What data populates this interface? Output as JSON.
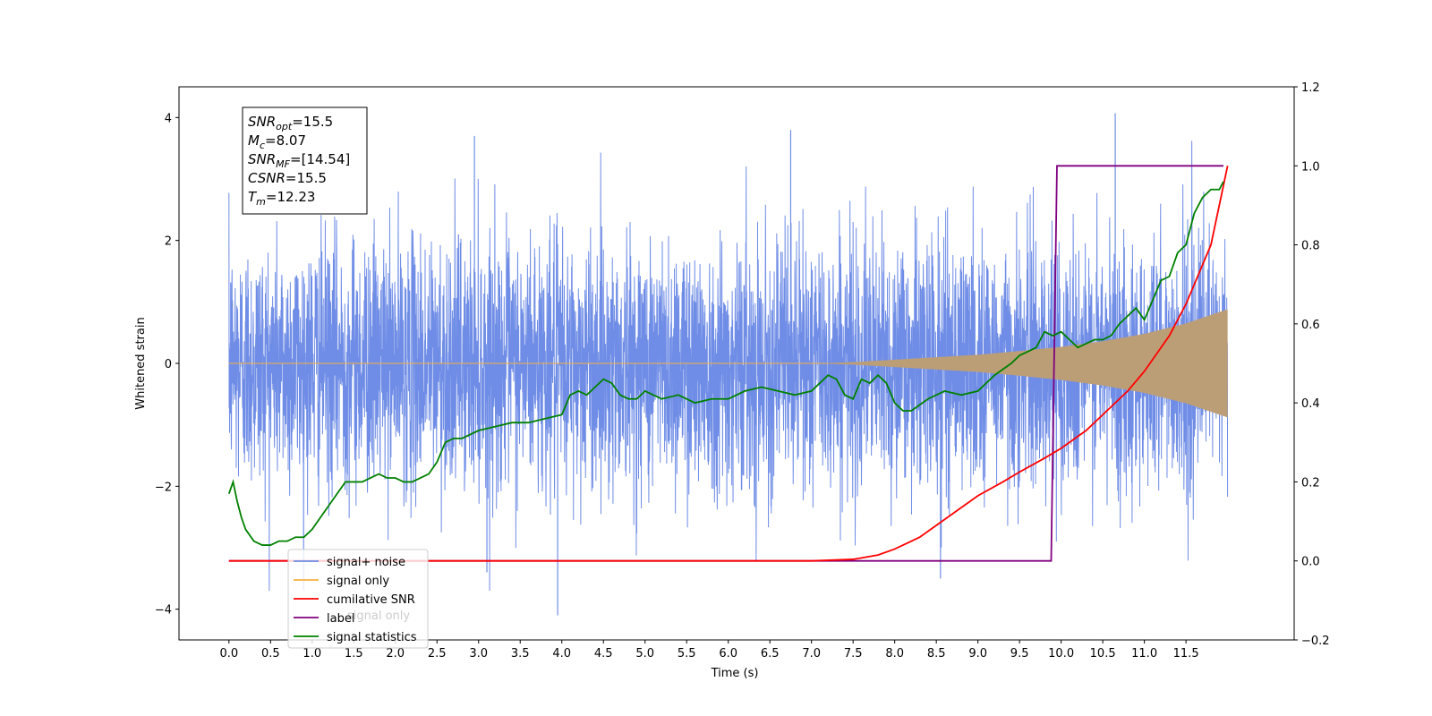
{
  "chart_data": {
    "type": "line",
    "title": "",
    "xlabel": "Time (s)",
    "ylabel": "Whitened strain",
    "y2label": "",
    "xlim": [
      -0.6,
      12.8
    ],
    "ylim": [
      -4.5,
      4.5
    ],
    "y2lim": [
      -0.2,
      1.2
    ],
    "x_ticks": [
      "0.0",
      "0.5",
      "1.0",
      "1.5",
      "2.0",
      "2.5",
      "3.0",
      "3.5",
      "4.0",
      "4.5",
      "5.0",
      "5.5",
      "6.0",
      "6.5",
      "7.0",
      "7.5",
      "8.0",
      "8.5",
      "9.0",
      "9.5",
      "10.0",
      "10.5",
      "11.0",
      "11.5"
    ],
    "y_ticks": [
      -4,
      -2,
      0,
      2,
      4
    ],
    "y2_ticks": [
      "−0.2",
      "0.0",
      "0.2",
      "0.4",
      "0.6",
      "0.8",
      "1.0",
      "1.2"
    ],
    "grid": false,
    "legend_position": "lower-left",
    "colors": {
      "signal_noise": "#6f8de6",
      "signal_only": "#f5b041",
      "cumulative_snr": "#ff0000",
      "label": "#800080",
      "signal_statistics": "#008000"
    },
    "legend": [
      {
        "key": "signal_noise",
        "label": "signal+ noise"
      },
      {
        "key": "signal_only",
        "label": "signal only"
      },
      {
        "key": "cumulative_snr",
        "label": "cumilative SNR"
      },
      {
        "key": "label",
        "label": "label"
      },
      {
        "key": "signal_statistics",
        "label": "signal statistics"
      }
    ],
    "hidden_legend_text": "signal only",
    "annotation": [
      {
        "base": "SNR",
        "sub": "opt",
        "value": "=15.5"
      },
      {
        "base": "M",
        "sub": "c",
        "value": "=8.07"
      },
      {
        "base": "SNR",
        "sub": "MF",
        "value": "=[14.54]"
      },
      {
        "base": "CSNR",
        "sub": "",
        "value": "=15.5"
      },
      {
        "base": "T",
        "sub": "m",
        "value": "=12.23"
      }
    ],
    "series": {
      "signal_noise": {
        "description_axis": "left",
        "x_range": [
          0.0,
          12.0
        ],
        "std": 1.0,
        "peak_max": 4.07,
        "peak_min": -4.1
      },
      "signal_only": {
        "axis": "left",
        "envelope_x": [
          0.0,
          7.0,
          7.5,
          8.0,
          8.5,
          9.0,
          9.5,
          10.0,
          10.5,
          11.0,
          11.5,
          12.0
        ],
        "envelope_amp": [
          0.0,
          0.0,
          0.02,
          0.06,
          0.1,
          0.14,
          0.2,
          0.27,
          0.36,
          0.48,
          0.65,
          0.88
        ]
      },
      "cumulative_snr": {
        "axis": "right",
        "x": [
          0.0,
          7.0,
          7.5,
          7.8,
          8.0,
          8.3,
          8.5,
          8.8,
          9.0,
          9.3,
          9.5,
          9.8,
          10.0,
          10.3,
          10.5,
          10.8,
          11.0,
          11.3,
          11.5,
          11.8,
          12.0
        ],
        "y": [
          0.0,
          0.0,
          0.004,
          0.015,
          0.03,
          0.06,
          0.09,
          0.135,
          0.165,
          0.2,
          0.225,
          0.26,
          0.285,
          0.33,
          0.37,
          0.43,
          0.48,
          0.57,
          0.65,
          0.8,
          1.0
        ]
      },
      "label": {
        "axis": "right",
        "x": [
          0.0,
          9.88,
          9.95,
          11.95
        ],
        "y": [
          0.0,
          0.0,
          1.0,
          1.0
        ]
      },
      "signal_statistics": {
        "axis": "right",
        "x": [
          0.0,
          0.05,
          0.1,
          0.15,
          0.2,
          0.3,
          0.4,
          0.5,
          0.6,
          0.7,
          0.8,
          0.9,
          1.0,
          1.1,
          1.2,
          1.3,
          1.4,
          1.5,
          1.6,
          1.7,
          1.8,
          1.9,
          2.0,
          2.1,
          2.2,
          2.3,
          2.4,
          2.5,
          2.6,
          2.7,
          2.8,
          2.9,
          3.0,
          3.2,
          3.4,
          3.6,
          3.8,
          4.0,
          4.1,
          4.2,
          4.3,
          4.4,
          4.5,
          4.6,
          4.7,
          4.8,
          4.9,
          5.0,
          5.1,
          5.2,
          5.4,
          5.6,
          5.8,
          6.0,
          6.2,
          6.4,
          6.6,
          6.8,
          7.0,
          7.1,
          7.2,
          7.3,
          7.4,
          7.5,
          7.6,
          7.7,
          7.8,
          7.9,
          8.0,
          8.1,
          8.2,
          8.4,
          8.6,
          8.8,
          9.0,
          9.2,
          9.4,
          9.5,
          9.6,
          9.7,
          9.8,
          9.9,
          10.0,
          10.1,
          10.2,
          10.3,
          10.4,
          10.5,
          10.6,
          10.7,
          10.8,
          10.9,
          11.0,
          11.1,
          11.2,
          11.3,
          11.4,
          11.5,
          11.6,
          11.7,
          11.8,
          11.9,
          11.95
        ],
        "y": [
          0.17,
          0.2,
          0.15,
          0.11,
          0.08,
          0.05,
          0.04,
          0.04,
          0.05,
          0.05,
          0.06,
          0.06,
          0.08,
          0.11,
          0.14,
          0.17,
          0.2,
          0.2,
          0.2,
          0.21,
          0.22,
          0.21,
          0.21,
          0.2,
          0.2,
          0.21,
          0.22,
          0.25,
          0.3,
          0.31,
          0.31,
          0.32,
          0.33,
          0.34,
          0.35,
          0.35,
          0.36,
          0.37,
          0.42,
          0.43,
          0.42,
          0.44,
          0.46,
          0.45,
          0.42,
          0.41,
          0.41,
          0.43,
          0.42,
          0.41,
          0.42,
          0.4,
          0.41,
          0.41,
          0.43,
          0.44,
          0.43,
          0.42,
          0.43,
          0.45,
          0.47,
          0.46,
          0.42,
          0.41,
          0.46,
          0.45,
          0.47,
          0.45,
          0.4,
          0.38,
          0.38,
          0.41,
          0.43,
          0.42,
          0.43,
          0.47,
          0.5,
          0.52,
          0.53,
          0.54,
          0.58,
          0.57,
          0.58,
          0.56,
          0.54,
          0.55,
          0.56,
          0.56,
          0.57,
          0.6,
          0.62,
          0.64,
          0.61,
          0.66,
          0.71,
          0.72,
          0.78,
          0.8,
          0.88,
          0.92,
          0.94,
          0.94,
          0.96
        ]
      }
    }
  }
}
